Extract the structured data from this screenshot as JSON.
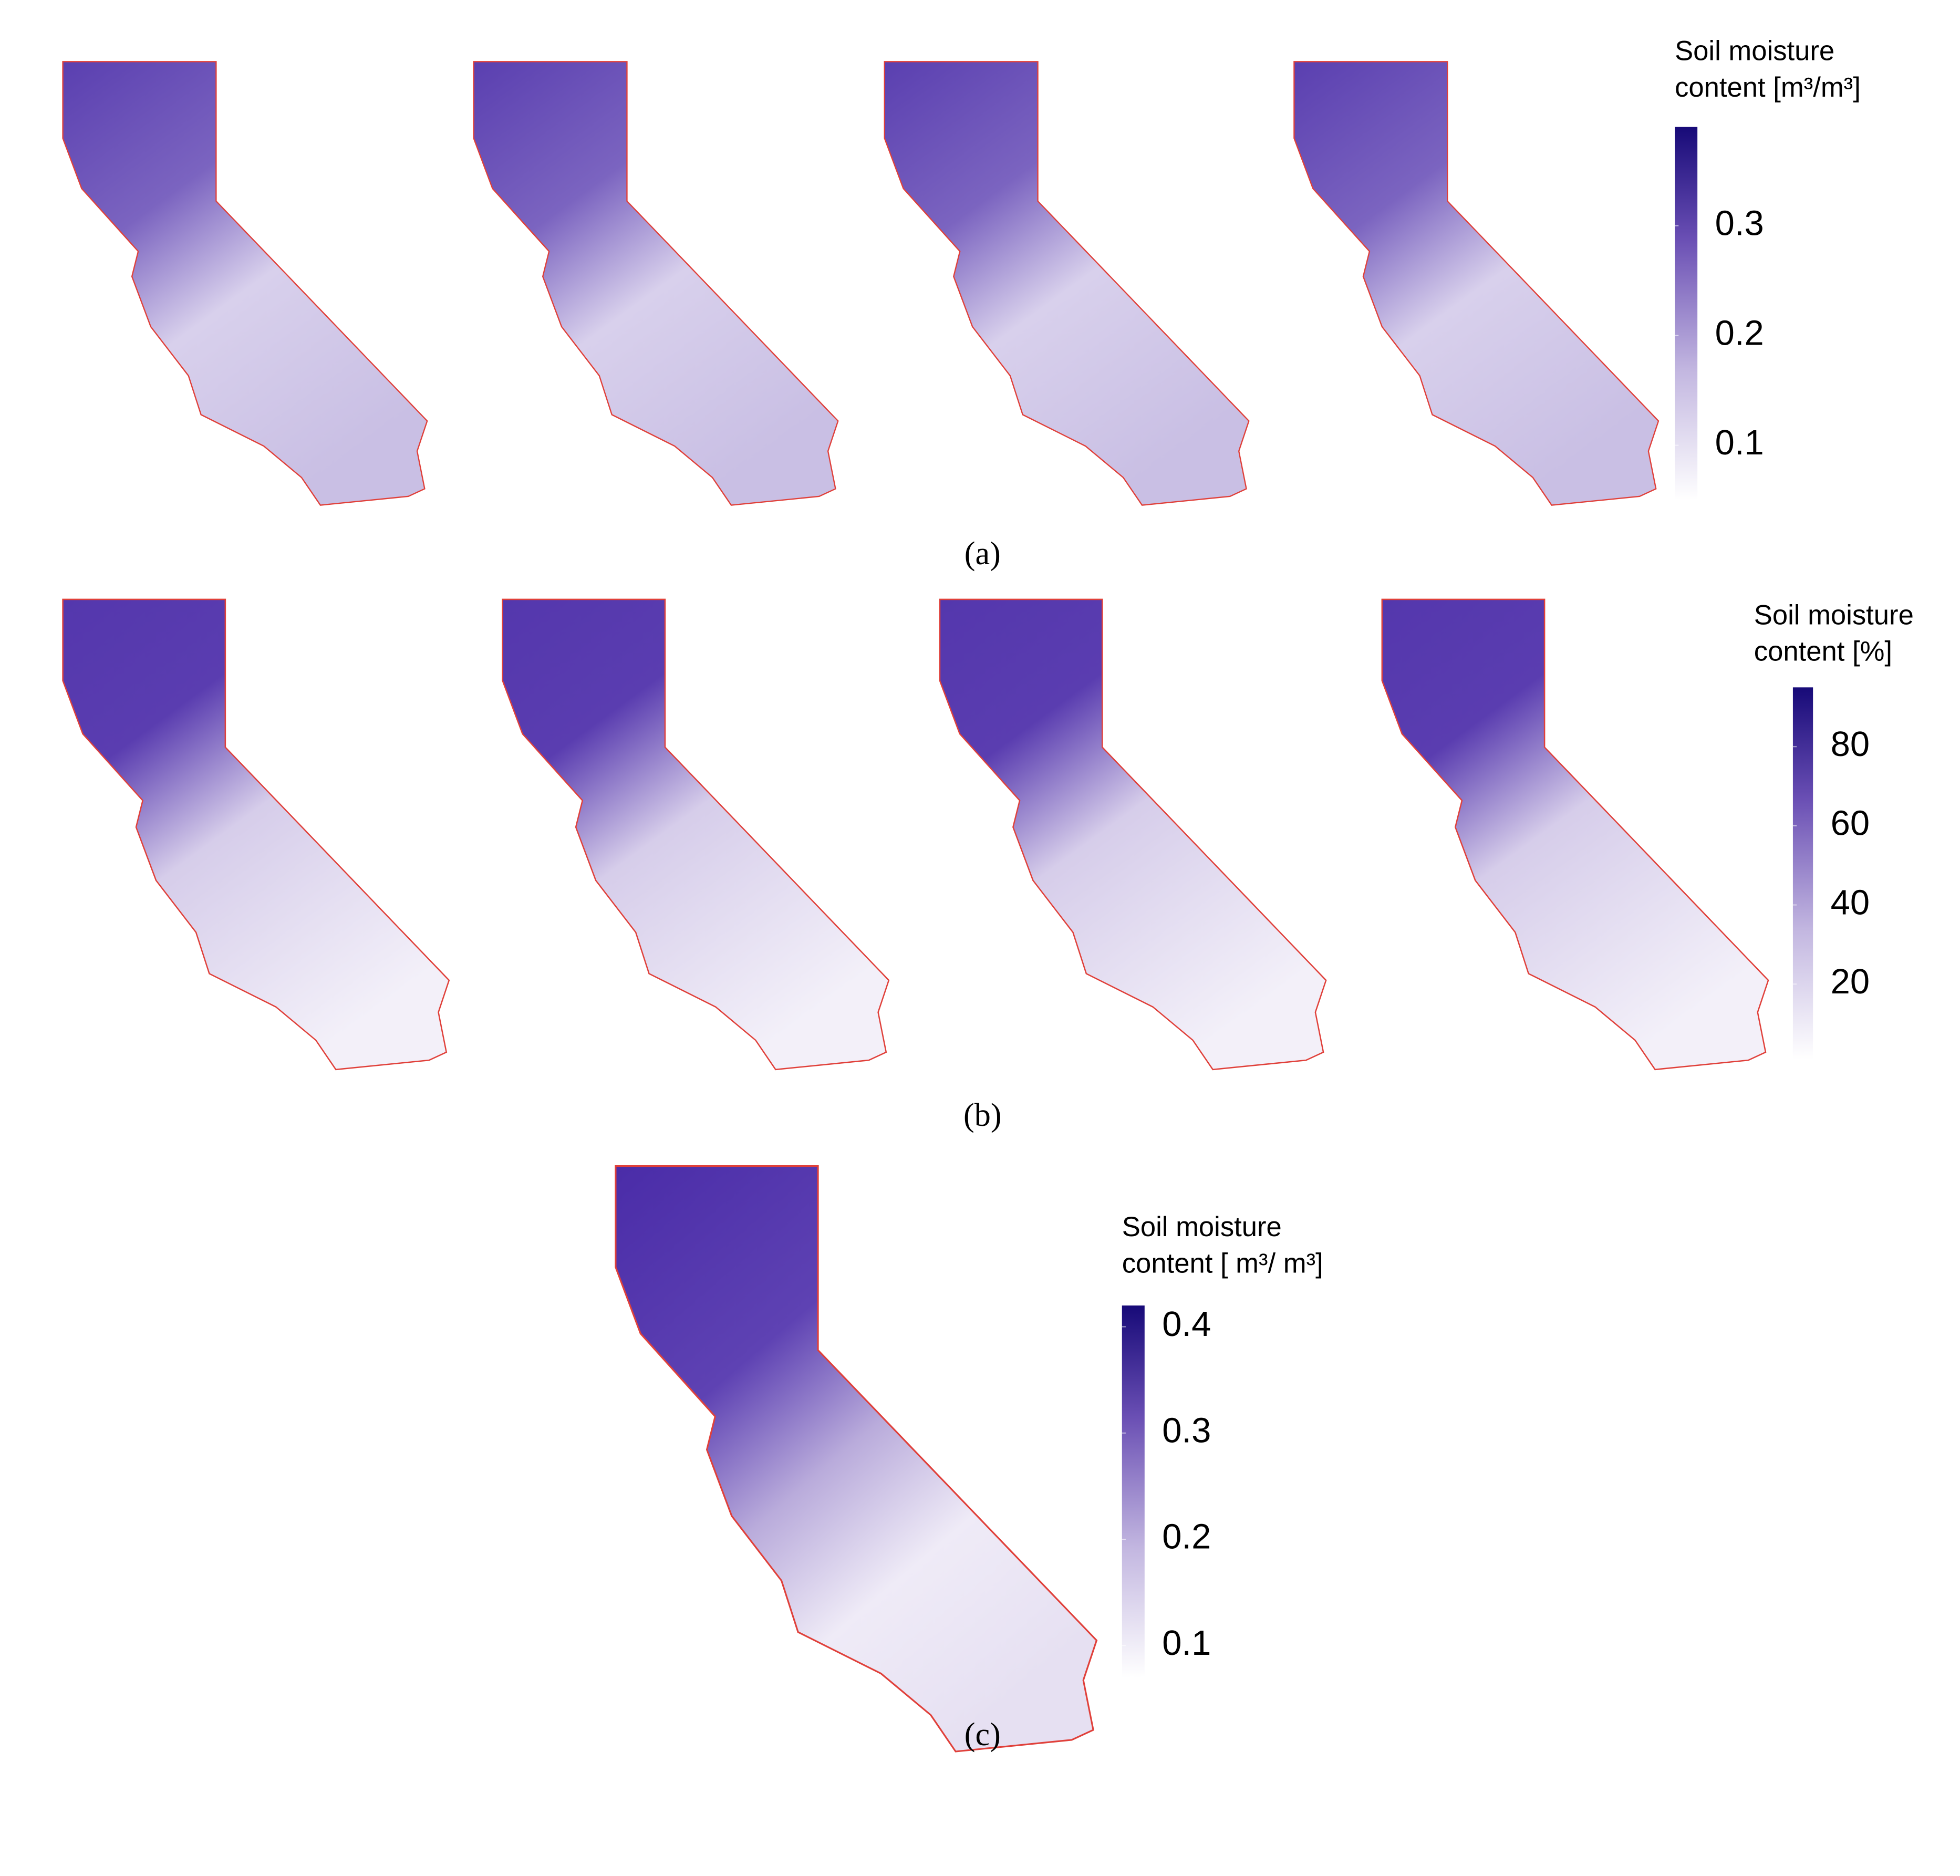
{
  "panels": [
    {
      "label": "(a)",
      "legend": {
        "title": [
          "Soil moisture",
          "content [m³/m³]"
        ],
        "range": [
          0.05,
          0.39
        ],
        "ticks": [
          0.1,
          0.2,
          0.3
        ]
      }
    },
    {
      "label": "(b)",
      "legend": {
        "title": [
          "Soil moisture",
          "content [%]"
        ],
        "range": [
          1,
          95
        ],
        "ticks": [
          20,
          40,
          60,
          80
        ]
      }
    },
    {
      "label": "(c)",
      "legend": {
        "title": [
          "Soil moisture",
          "content [ m³/ m³]"
        ],
        "range": [
          0.07,
          0.42
        ],
        "ticks": [
          0.1,
          0.2,
          0.3,
          0.4
        ]
      }
    }
  ]
}
